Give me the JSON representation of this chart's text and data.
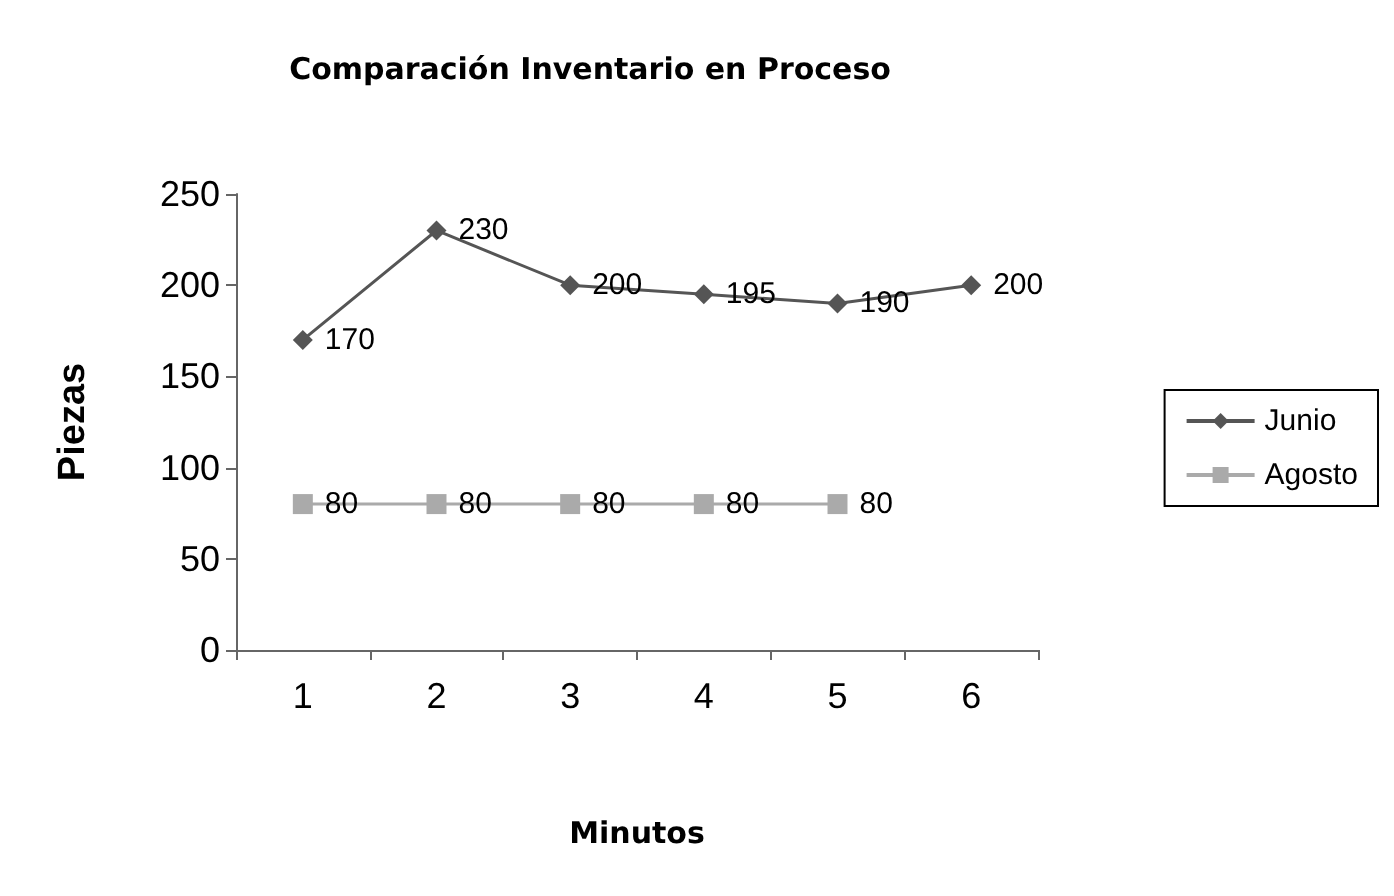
{
  "chart_data": {
    "type": "line",
    "title": "Comparación Inventario en Proceso",
    "xlabel": "Minutos",
    "ylabel": "Piezas",
    "categories": [
      "1",
      "2",
      "3",
      "4",
      "5",
      "6"
    ],
    "series": [
      {
        "name": "Junio",
        "color": "#555555",
        "marker": "diamond",
        "values": [
          170,
          230,
          200,
          195,
          190,
          200
        ]
      },
      {
        "name": "Agosto",
        "color": "#aaaaaa",
        "marker": "square",
        "values": [
          80,
          80,
          80,
          80,
          80,
          null
        ]
      }
    ],
    "ylim": [
      0,
      250
    ],
    "yticks": [
      0,
      50,
      100,
      150,
      200,
      250
    ],
    "grid": false,
    "legend": "right",
    "data_labels": true
  }
}
